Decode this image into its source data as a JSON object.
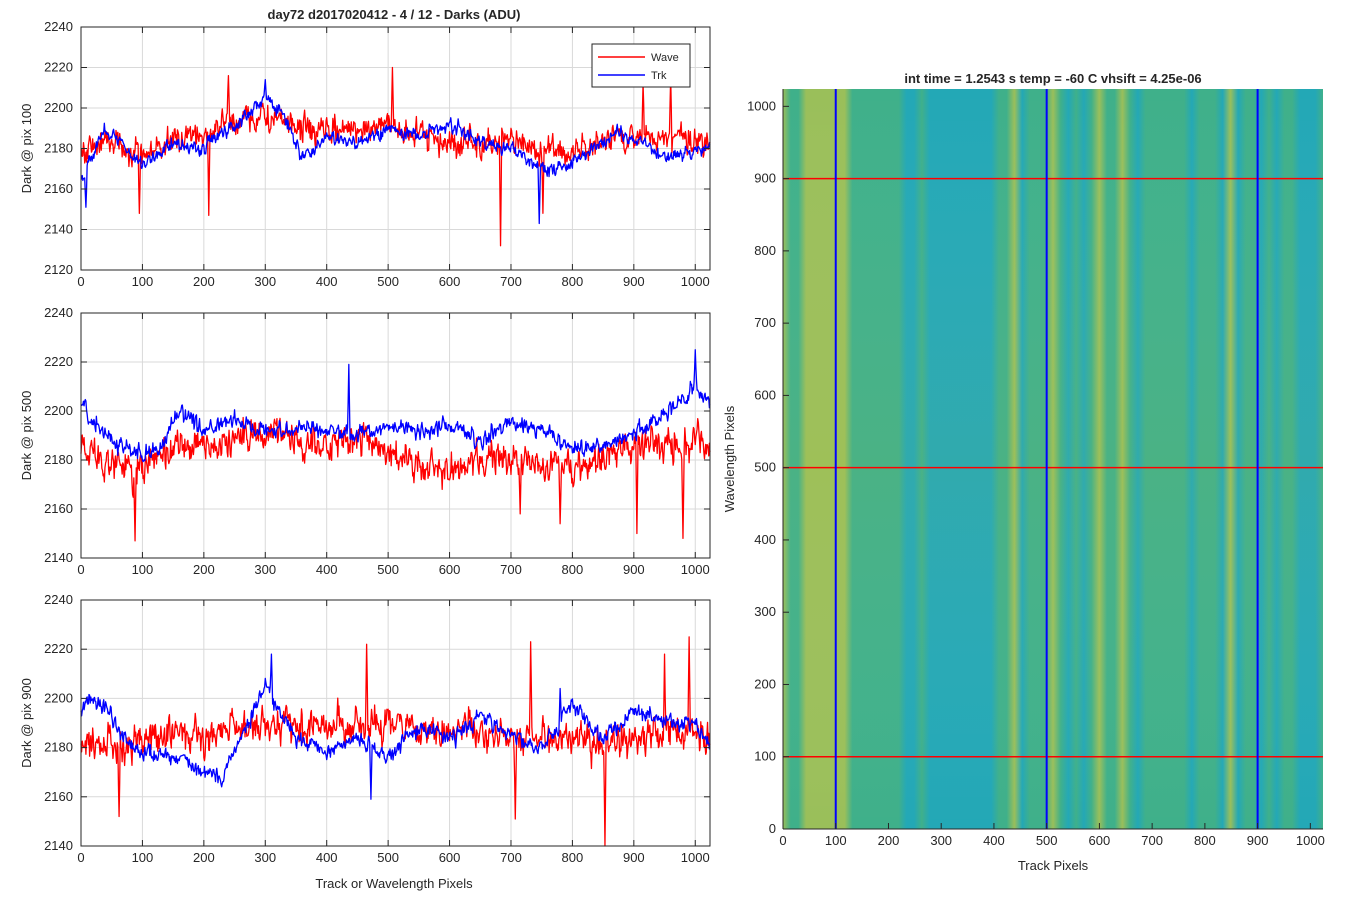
{
  "figure": {
    "title": "day72 d2017020412 - 4 / 12 - Darks (ADU)",
    "shared_xlabel": "Track or Wavelength Pixels"
  },
  "colors": {
    "wave": "#ff0000",
    "trk": "#0000ff",
    "grid": "#d9d9d9",
    "axis": "#262626",
    "heatmap_low": "#1aa5c5",
    "heatmap_mid": "#3fb08a",
    "heatmap_high": "#b9c44a"
  },
  "chart_data": [
    {
      "type": "line",
      "ylabel": "Dark @ pix 100",
      "xlim": [
        0,
        1024
      ],
      "ylim": [
        2120,
        2240
      ],
      "xticks": [
        0,
        100,
        200,
        300,
        400,
        500,
        600,
        700,
        800,
        900,
        1000
      ],
      "yticks": [
        2120,
        2140,
        2160,
        2180,
        2200,
        2220,
        2240
      ],
      "grid": true,
      "legend": {
        "placement": "top-right",
        "entries": [
          "Wave",
          "Trk"
        ]
      },
      "series": [
        {
          "name": "Wave",
          "color": "#ff0000",
          "x": [
            0,
            50,
            100,
            150,
            200,
            250,
            300,
            350,
            400,
            450,
            500,
            550,
            600,
            650,
            700,
            750,
            800,
            850,
            900,
            950,
            1000,
            1024
          ],
          "values": [
            2178,
            2185,
            2176,
            2184,
            2188,
            2194,
            2196,
            2190,
            2188,
            2190,
            2193,
            2186,
            2183,
            2182,
            2182,
            2180,
            2178,
            2183,
            2186,
            2187,
            2185,
            2184
          ],
          "amplitude": 10,
          "spikes": [
            {
              "x": 95,
              "y": 2148
            },
            {
              "x": 208,
              "y": 2147
            },
            {
              "x": 240,
              "y": 2216
            },
            {
              "x": 507,
              "y": 2220
            },
            {
              "x": 683,
              "y": 2132
            },
            {
              "x": 752,
              "y": 2148
            },
            {
              "x": 915,
              "y": 2212
            },
            {
              "x": 960,
              "y": 2215
            }
          ]
        },
        {
          "name": "Trk",
          "color": "#0000ff",
          "x": [
            0,
            40,
            100,
            150,
            200,
            250,
            300,
            330,
            360,
            400,
            450,
            500,
            550,
            600,
            650,
            700,
            750,
            800,
            830,
            870,
            900,
            950,
            1000,
            1024
          ],
          "values": [
            2165,
            2190,
            2172,
            2183,
            2180,
            2192,
            2205,
            2196,
            2175,
            2186,
            2182,
            2190,
            2186,
            2192,
            2183,
            2180,
            2170,
            2172,
            2180,
            2188,
            2186,
            2176,
            2178,
            2182
          ],
          "amplitude": 5,
          "spikes": [
            {
              "x": 8,
              "y": 2151
            },
            {
              "x": 300,
              "y": 2214
            },
            {
              "x": 746,
              "y": 2143
            }
          ]
        }
      ]
    },
    {
      "type": "line",
      "ylabel": "Dark @ pix 500",
      "xlim": [
        0,
        1024
      ],
      "ylim": [
        2140,
        2240
      ],
      "xticks": [
        0,
        100,
        200,
        300,
        400,
        500,
        600,
        700,
        800,
        900,
        1000
      ],
      "yticks": [
        2140,
        2160,
        2180,
        2200,
        2220,
        2240
      ],
      "grid": true,
      "series": [
        {
          "name": "Wave",
          "color": "#ff0000",
          "x": [
            0,
            50,
            100,
            150,
            200,
            250,
            300,
            350,
            400,
            450,
            500,
            550,
            600,
            650,
            700,
            750,
            800,
            850,
            900,
            950,
            1000,
            1024
          ],
          "values": [
            2188,
            2178,
            2176,
            2184,
            2186,
            2188,
            2190,
            2188,
            2185,
            2190,
            2183,
            2178,
            2176,
            2178,
            2180,
            2178,
            2176,
            2182,
            2185,
            2187,
            2186,
            2188
          ],
          "amplitude": 10,
          "spikes": [
            {
              "x": 88,
              "y": 2147
            },
            {
              "x": 715,
              "y": 2158
            },
            {
              "x": 780,
              "y": 2154
            },
            {
              "x": 905,
              "y": 2150
            },
            {
              "x": 980,
              "y": 2148
            }
          ]
        },
        {
          "name": "Trk",
          "color": "#0000ff",
          "x": [
            0,
            50,
            100,
            130,
            160,
            200,
            250,
            300,
            350,
            400,
            450,
            500,
            550,
            600,
            650,
            700,
            750,
            800,
            850,
            900,
            950,
            1000,
            1024
          ],
          "values": [
            2203,
            2188,
            2182,
            2184,
            2200,
            2192,
            2196,
            2192,
            2194,
            2192,
            2190,
            2194,
            2192,
            2194,
            2188,
            2196,
            2192,
            2184,
            2186,
            2190,
            2198,
            2210,
            2204
          ],
          "amplitude": 5,
          "spikes": [
            {
              "x": 436,
              "y": 2219
            },
            {
              "x": 1000,
              "y": 2225
            }
          ]
        }
      ]
    },
    {
      "type": "line",
      "ylabel": "Dark @ pix 900",
      "xlim": [
        0,
        1024
      ],
      "ylim": [
        2140,
        2240
      ],
      "xticks": [
        0,
        100,
        200,
        300,
        400,
        500,
        600,
        700,
        800,
        900,
        1000
      ],
      "yticks": [
        2140,
        2160,
        2180,
        2200,
        2220,
        2240
      ],
      "grid": true,
      "series": [
        {
          "name": "Wave",
          "color": "#ff0000",
          "x": [
            0,
            50,
            100,
            150,
            200,
            250,
            300,
            350,
            400,
            450,
            500,
            550,
            600,
            650,
            700,
            750,
            800,
            850,
            900,
            950,
            1000,
            1024
          ],
          "values": [
            2182,
            2180,
            2184,
            2186,
            2185,
            2188,
            2190,
            2188,
            2189,
            2190,
            2188,
            2186,
            2188,
            2186,
            2185,
            2184,
            2183,
            2182,
            2184,
            2188,
            2186,
            2184
          ],
          "amplitude": 10,
          "spikes": [
            {
              "x": 62,
              "y": 2152
            },
            {
              "x": 465,
              "y": 2222
            },
            {
              "x": 707,
              "y": 2151
            },
            {
              "x": 732,
              "y": 2223
            },
            {
              "x": 853,
              "y": 2140
            },
            {
              "x": 950,
              "y": 2218
            },
            {
              "x": 990,
              "y": 2225
            }
          ]
        },
        {
          "name": "Trk",
          "color": "#0000ff",
          "x": [
            0,
            30,
            80,
            150,
            200,
            230,
            300,
            350,
            400,
            450,
            500,
            550,
            600,
            650,
            700,
            750,
            800,
            850,
            900,
            950,
            1000,
            1024
          ],
          "values": [
            2196,
            2200,
            2180,
            2176,
            2170,
            2168,
            2205,
            2184,
            2178,
            2184,
            2176,
            2188,
            2184,
            2192,
            2186,
            2178,
            2198,
            2184,
            2194,
            2192,
            2190,
            2180
          ],
          "amplitude": 5,
          "spikes": [
            {
              "x": 310,
              "y": 2218
            },
            {
              "x": 472,
              "y": 2159
            },
            {
              "x": 780,
              "y": 2204
            }
          ]
        }
      ]
    },
    {
      "type": "heatmap",
      "title": "int time = 1.2543 s    temp = -60 C    vhsift = 4.25e-06",
      "xlabel": "Track Pixels",
      "ylabel": "Wavelength Pixels",
      "xlim": [
        0,
        1024
      ],
      "ylim": [
        0,
        1024
      ],
      "xticks": [
        0,
        100,
        200,
        300,
        400,
        500,
        600,
        700,
        800,
        900,
        1000
      ],
      "yticks": [
        0,
        100,
        200,
        300,
        400,
        500,
        600,
        700,
        800,
        900,
        1000
      ],
      "vertical_markers": {
        "x": [
          100,
          500,
          900
        ],
        "color": "#0000ff"
      },
      "horizontal_markers": {
        "y": [
          100,
          500,
          900
        ],
        "color": "#ff0000"
      }
    }
  ]
}
